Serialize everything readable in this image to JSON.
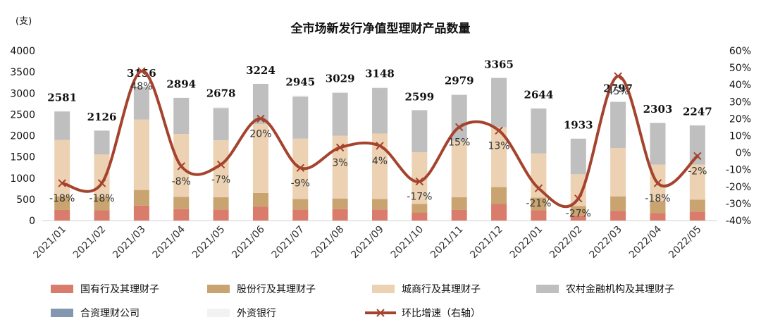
{
  "chart_data": {
    "type": "bar",
    "title": "全市场新发行净值型理财产品数量",
    "y_unit_label": "(支)",
    "categories": [
      "2021/01",
      "2021/02",
      "2021/03",
      "2021/04",
      "2021/05",
      "2021/06",
      "2021/07",
      "2021/08",
      "2021/09",
      "2021/10",
      "2021/11",
      "2021/12",
      "2022/01",
      "2022/02",
      "2022/03",
      "2022/04",
      "2022/05"
    ],
    "totals": [
      "2581",
      "2126",
      "3156",
      "2894",
      "2678",
      "3224",
      "2945",
      "3029",
      "3148",
      "2599",
      "2979",
      "3365",
      "2644",
      "1933",
      "2797",
      "2303",
      "2247"
    ],
    "y_left": {
      "min": 0,
      "max": 4000,
      "ticks": [
        "0",
        "500",
        "1000",
        "1500",
        "2000",
        "2500",
        "3000",
        "3500",
        "4000"
      ]
    },
    "y_right": {
      "min": -40,
      "max": 60,
      "ticks": [
        "-40%",
        "-30%",
        "-20%",
        "-10%",
        "0%",
        "10%",
        "20%",
        "30%",
        "40%",
        "50%",
        "60%"
      ]
    },
    "series": [
      {
        "name": "国有行及其理财子",
        "color": "#d97c6c",
        "values": [
          250,
          240,
          350,
          270,
          260,
          330,
          260,
          270,
          260,
          190,
          250,
          390,
          240,
          120,
          230,
          180,
          210
        ]
      },
      {
        "name": "股份行及其理财子",
        "color": "#c9a470",
        "values": [
          320,
          320,
          370,
          290,
          290,
          320,
          250,
          250,
          250,
          200,
          300,
          400,
          300,
          220,
          340,
          280,
          280
        ]
      },
      {
        "name": "城商行及其理财子",
        "color": "#ecd2b2",
        "values": [
          1330,
          1000,
          1660,
          1480,
          1340,
          1620,
          1420,
          1480,
          1540,
          1220,
          1330,
          1410,
          1040,
          750,
          1140,
          860,
          830
        ]
      },
      {
        "name": "农村金融机构及其理财子",
        "color": "#bfbfbf",
        "values": [
          670,
          560,
          760,
          850,
          760,
          950,
          990,
          1010,
          1070,
          990,
          1080,
          1160,
          1060,
          840,
          1080,
          980,
          920
        ]
      },
      {
        "name": "合资理财公司",
        "color": "#8497b0",
        "values": [
          0,
          0,
          5,
          0,
          0,
          0,
          0,
          0,
          0,
          0,
          0,
          0,
          0,
          0,
          5,
          0,
          0
        ]
      },
      {
        "name": "外资银行",
        "color": "#f2f2f2",
        "values": [
          11,
          6,
          11,
          4,
          28,
          4,
          25,
          19,
          28,
          0,
          19,
          5,
          4,
          3,
          2,
          3,
          7
        ]
      },
      {
        "name": "环比增速（右轴）",
        "color": "#a5432e",
        "axis": "right",
        "values": [
          -18,
          -18,
          48,
          -8,
          -7,
          20,
          -9,
          3,
          4,
          -17,
          15,
          13,
          -21,
          -27,
          45,
          -18,
          -2
        ],
        "labels": [
          "-18%",
          "-18%",
          "48%",
          "-8%",
          "-7%",
          "20%",
          "-9%",
          "3%",
          "4%",
          "-17%",
          "15%",
          "13%",
          "-21%",
          "-27%",
          "45%",
          "-18%",
          "-2%"
        ]
      }
    ],
    "legend_position": "bottom"
  }
}
